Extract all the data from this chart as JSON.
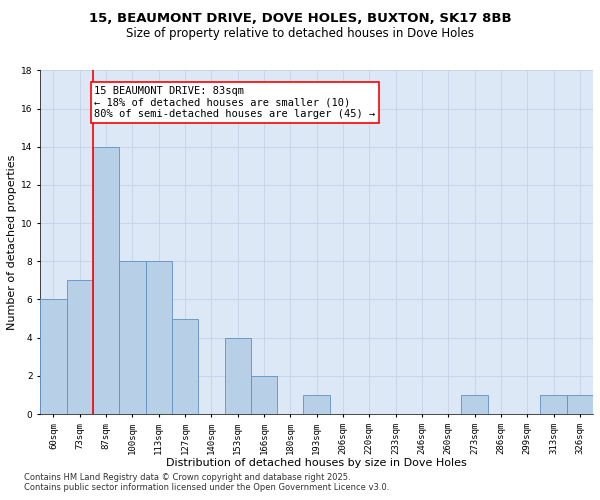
{
  "title": "15, BEAUMONT DRIVE, DOVE HOLES, BUXTON, SK17 8BB",
  "subtitle": "Size of property relative to detached houses in Dove Holes",
  "xlabel": "Distribution of detached houses by size in Dove Holes",
  "ylabel": "Number of detached properties",
  "categories": [
    "60sqm",
    "73sqm",
    "87sqm",
    "100sqm",
    "113sqm",
    "127sqm",
    "140sqm",
    "153sqm",
    "166sqm",
    "180sqm",
    "193sqm",
    "206sqm",
    "220sqm",
    "233sqm",
    "246sqm",
    "260sqm",
    "273sqm",
    "286sqm",
    "299sqm",
    "313sqm",
    "326sqm"
  ],
  "values": [
    6,
    7,
    14,
    8,
    8,
    5,
    0,
    4,
    2,
    0,
    1,
    0,
    0,
    0,
    0,
    0,
    1,
    0,
    0,
    1,
    1
  ],
  "bar_color": "#b8cfe8",
  "bar_edge_color": "#6090c0",
  "property_line_x": 1.5,
  "annotation_text": "15 BEAUMONT DRIVE: 83sqm\n← 18% of detached houses are smaller (10)\n80% of semi-detached houses are larger (45) →",
  "ylim": [
    0,
    18
  ],
  "yticks": [
    0,
    2,
    4,
    6,
    8,
    10,
    12,
    14,
    16,
    18
  ],
  "grid_color": "#c8d4e8",
  "bg_color": "#dce8f5",
  "footer_line1": "Contains HM Land Registry data © Crown copyright and database right 2025.",
  "footer_line2": "Contains public sector information licensed under the Open Government Licence v3.0.",
  "title_fontsize": 9.5,
  "subtitle_fontsize": 8.5,
  "axis_label_fontsize": 8,
  "tick_fontsize": 6.5,
  "annotation_fontsize": 7.5,
  "footer_fontsize": 6
}
